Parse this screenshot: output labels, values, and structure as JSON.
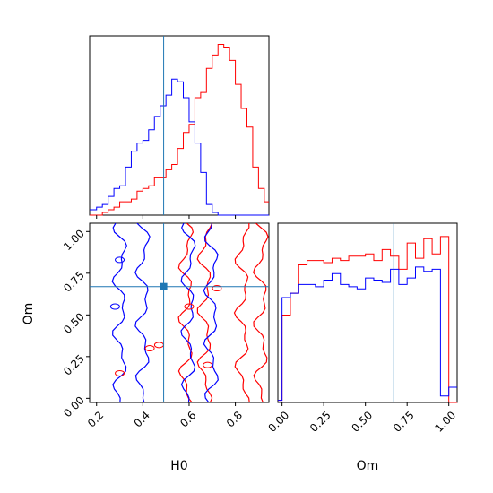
{
  "chart_data": {
    "type": "corner",
    "parameters": [
      "H0",
      "Om"
    ],
    "truths": {
      "H0": 0.49,
      "Om": 0.67
    },
    "ranges": {
      "H0": [
        0.17,
        0.945
      ],
      "Om": [
        -0.025,
        1.05
      ]
    },
    "ticks": {
      "H0": [
        "0.2",
        "0.4",
        "0.6",
        "0.8"
      ],
      "Om": [
        "0.00",
        "0.25",
        "0.50",
        "0.75",
        "1.00"
      ]
    },
    "series": [
      {
        "color": "#ff0000"
      },
      {
        "color": "#0000ff"
      }
    ],
    "truth_color": "#1f77b4",
    "panels": [
      {
        "type": "histogram",
        "x_param": "H0",
        "bin_edges": [
          0.17,
          0.2,
          0.225,
          0.25,
          0.275,
          0.3,
          0.325,
          0.35,
          0.375,
          0.4,
          0.425,
          0.45,
          0.475,
          0.5,
          0.525,
          0.55,
          0.575,
          0.6,
          0.625,
          0.65,
          0.675,
          0.7,
          0.725,
          0.75,
          0.775,
          0.8,
          0.825,
          0.85,
          0.875,
          0.9,
          0.925,
          0.945
        ],
        "counts": {
          "red": [
            0,
            0,
            1,
            2,
            3,
            5,
            5,
            6,
            9,
            10,
            11,
            14,
            14,
            17,
            19,
            25,
            31,
            34,
            44,
            46,
            55,
            60,
            64,
            63,
            58,
            49,
            40,
            33,
            18,
            10,
            5
          ],
          "blue": [
            2,
            3,
            4,
            7,
            10,
            11,
            18,
            24,
            27,
            28,
            32,
            37,
            41,
            45,
            51,
            50,
            44,
            35,
            27,
            16,
            4,
            1,
            0,
            0,
            0,
            0,
            0,
            0,
            0,
            0,
            0
          ]
        }
      },
      {
        "type": "histogram",
        "x_param": "Om",
        "bin_edges": [
          -0.025,
          0.0,
          0.05,
          0.1,
          0.15,
          0.2,
          0.25,
          0.3,
          0.35,
          0.4,
          0.45,
          0.5,
          0.55,
          0.6,
          0.65,
          0.7,
          0.75,
          0.8,
          0.85,
          0.9,
          0.95,
          1.0,
          1.05
        ],
        "counts": {
          "red": [
            1,
            40,
            50,
            63,
            65,
            65,
            64,
            66,
            65,
            67,
            67,
            68,
            65,
            70,
            67,
            61,
            73,
            66,
            75,
            68,
            76,
            0
          ],
          "blue": [
            1,
            48,
            50,
            54,
            54,
            53,
            56,
            59,
            54,
            53,
            52,
            57,
            56,
            55,
            61,
            54,
            57,
            62,
            60,
            61,
            3,
            7
          ]
        }
      },
      {
        "type": "contour",
        "x_param": "H0",
        "y_param": "Om",
        "series": [
          {
            "name": "red",
            "peak_x": 0.75,
            "width_x": 0.09,
            "levels": 2
          },
          {
            "name": "blue",
            "peak_x": 0.5,
            "width_x": 0.11,
            "levels": 2
          }
        ]
      }
    ],
    "xlabels": [
      "H0",
      "Om"
    ],
    "ylabels": [
      "",
      "Om"
    ]
  }
}
